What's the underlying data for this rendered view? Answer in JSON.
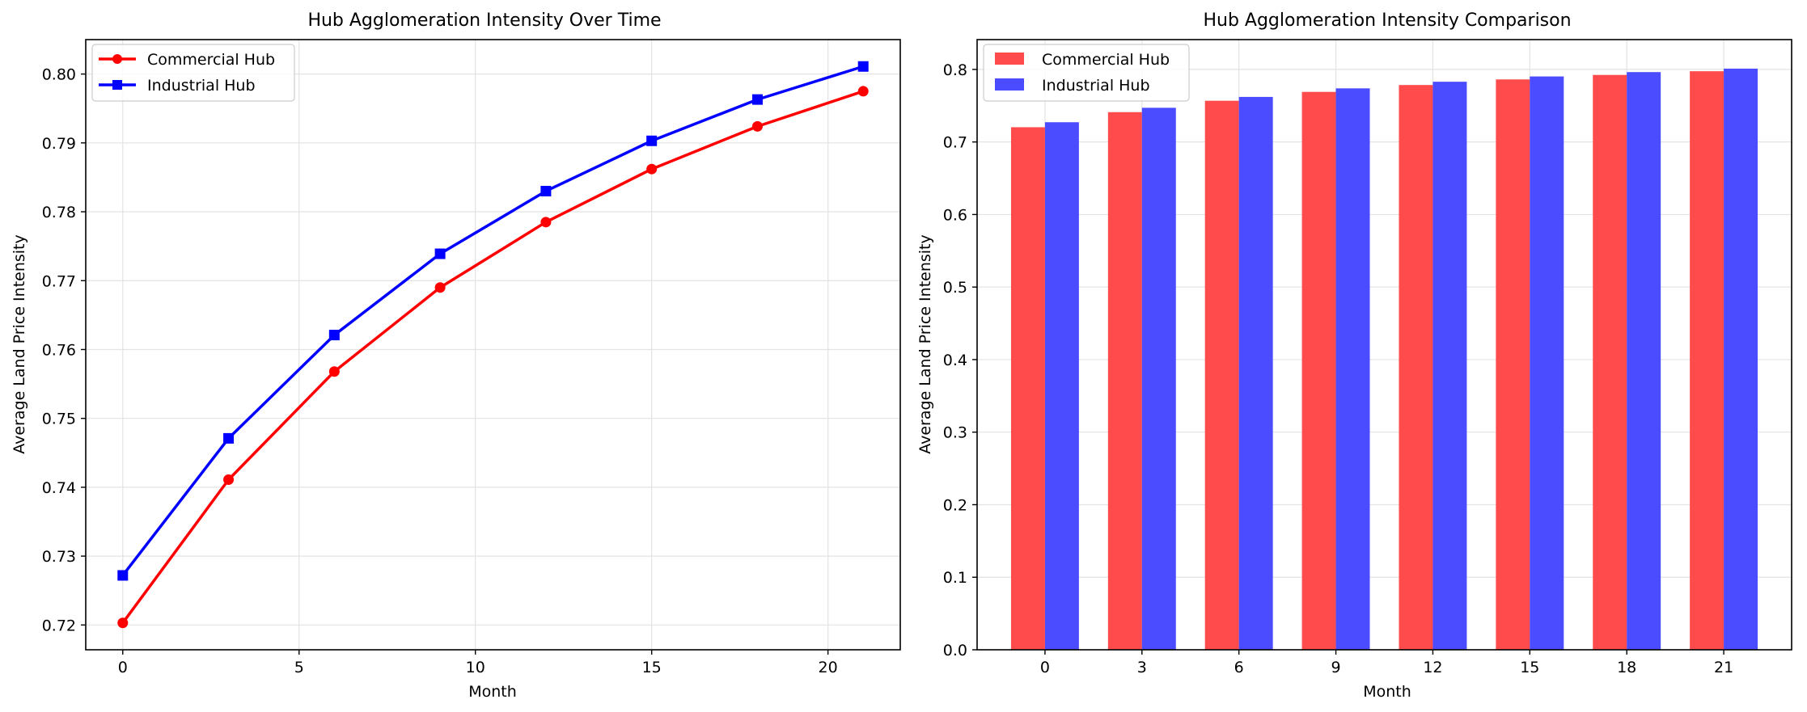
{
  "chart_data": [
    {
      "type": "line",
      "title": "Hub Agglomeration Intensity Over Time",
      "xlabel": "Month",
      "ylabel": "Average Land Price Intensity",
      "x": [
        0,
        3,
        6,
        9,
        12,
        15,
        18,
        21
      ],
      "xticks": [
        "0",
        "5",
        "10",
        "15",
        "20"
      ],
      "yticks": [
        "0.72",
        "0.73",
        "0.74",
        "0.75",
        "0.76",
        "0.77",
        "0.78",
        "0.79",
        "0.80"
      ],
      "xlim": [
        -1.05,
        22.05
      ],
      "ylim": [
        0.7164,
        0.805
      ],
      "grid": true,
      "legend_position": "top-left",
      "series": [
        {
          "name": "Commercial Hub",
          "color": "#ff0000",
          "marker": "circle",
          "values": [
            0.7203,
            0.7411,
            0.7568,
            0.769,
            0.7785,
            0.7862,
            0.7924,
            0.7975
          ]
        },
        {
          "name": "Industrial Hub",
          "color": "#0000ff",
          "marker": "square",
          "values": [
            0.7272,
            0.7471,
            0.7621,
            0.7739,
            0.783,
            0.7903,
            0.7963,
            0.8011
          ]
        }
      ]
    },
    {
      "type": "bar",
      "title": "Hub Agglomeration Intensity Comparison",
      "xlabel": "Month",
      "ylabel": "Average Land Price Intensity",
      "categories": [
        "0",
        "3",
        "6",
        "9",
        "12",
        "15",
        "18",
        "21"
      ],
      "yticks": [
        "0.0",
        "0.1",
        "0.2",
        "0.3",
        "0.4",
        "0.5",
        "0.6",
        "0.7",
        "0.8"
      ],
      "ylim": [
        0,
        0.8411
      ],
      "grid": true,
      "legend_position": "top-left",
      "series": [
        {
          "name": "Commercial Hub",
          "color": "#ff4b4b",
          "values": [
            0.7203,
            0.7411,
            0.7568,
            0.769,
            0.7785,
            0.7862,
            0.7924,
            0.7975
          ]
        },
        {
          "name": "Industrial Hub",
          "color": "#4b4bff",
          "values": [
            0.7272,
            0.7471,
            0.7621,
            0.7739,
            0.783,
            0.7903,
            0.7963,
            0.8011
          ]
        }
      ]
    }
  ]
}
